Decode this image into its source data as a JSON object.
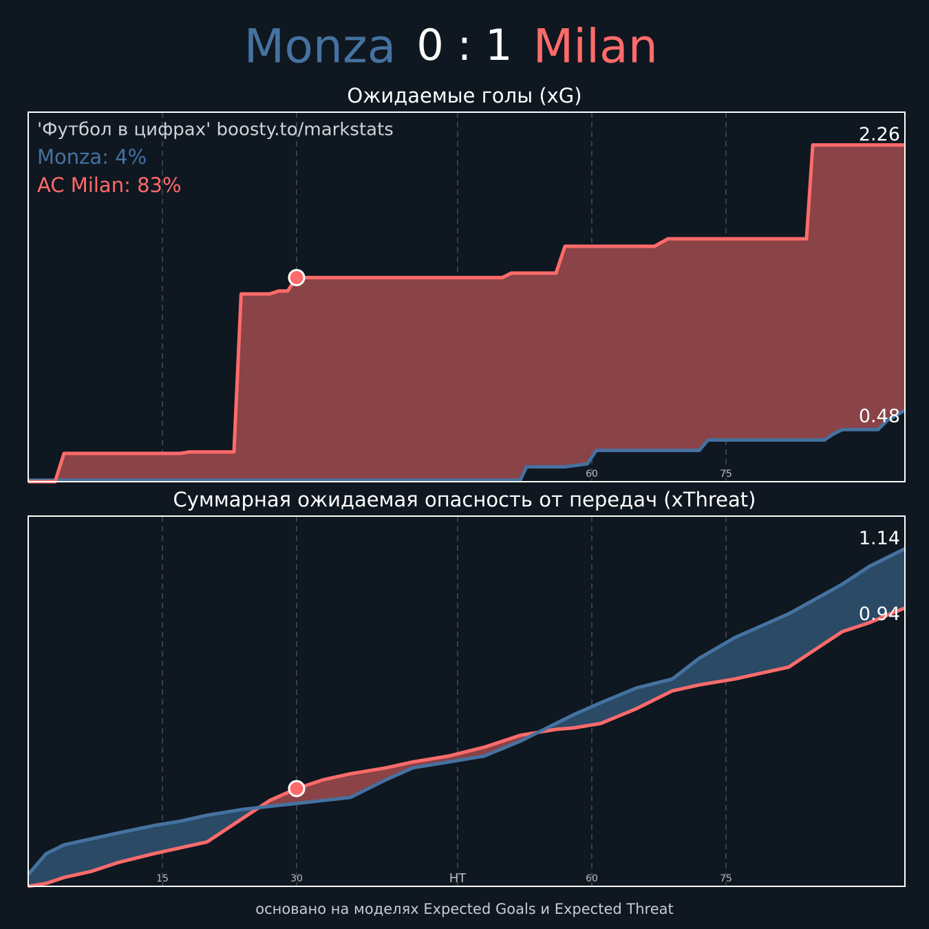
{
  "header": {
    "home": "Monza",
    "score": "0 : 1",
    "away": "Milan",
    "home_color": "#4572a0",
    "away_color": "#ff6b6b"
  },
  "footer": "основано на моделях Expected Goals и Expected Threat",
  "chart_data": [
    {
      "type": "line",
      "title": "Ожидаемые голы (xG)",
      "notes": [
        {
          "text": "'Футбол в цифрах' boosty.to/markstats",
          "color": "#cfd3d8"
        },
        {
          "text": "Monza: 4%",
          "color": "#4572a0"
        },
        {
          "text": "AC Milan: 83%",
          "color": "#ff6b6b"
        }
      ],
      "x": [
        0,
        3,
        4,
        17,
        18,
        23,
        23.8,
        27,
        28,
        29,
        30,
        53,
        54,
        55,
        55.7,
        59,
        60,
        62.5,
        63.5,
        70,
        71.5,
        75,
        76,
        87,
        87.7,
        89,
        90,
        91,
        95,
        96,
        98
      ],
      "series": [
        {
          "name": "Milan",
          "color": "#ff6b6b",
          "fill": "#8a4347",
          "values": [
            0,
            0,
            0.19,
            0.19,
            0.2,
            0.2,
            1.26,
            1.26,
            1.28,
            1.28,
            1.37,
            1.37,
            1.4,
            1.4,
            1.4,
            1.4,
            1.58,
            1.58,
            1.58,
            1.58,
            1.63,
            1.63,
            1.63,
            1.63,
            2.26,
            2.26,
            2.26,
            2.26,
            2.26,
            2.26,
            2.26
          ]
        },
        {
          "name": "Monza",
          "color": "#4572a0",
          "fill": "#2b4a66",
          "values": [
            0.01,
            0.01,
            0.01,
            0.01,
            0.01,
            0.01,
            0.01,
            0.01,
            0.01,
            0.01,
            0.01,
            0.01,
            0.01,
            0.01,
            0.1,
            0.1,
            0.1,
            0.12,
            0.21,
            0.21,
            0.21,
            0.21,
            0.28,
            0.28,
            0.28,
            0.28,
            0.32,
            0.35,
            0.35,
            0.41,
            0.48
          ]
        }
      ],
      "goals": [
        {
          "x": 30,
          "value": 1.37,
          "color": "#ff6b6b"
        }
      ],
      "xlim": [
        0,
        98
      ],
      "ylim": [
        0,
        2.48
      ],
      "xticks": [
        15,
        30,
        {
          "value": 48,
          "label": "HT"
        },
        {
          "value": 63,
          "label": "60"
        },
        {
          "value": 78,
          "label": "75"
        }
      ],
      "grid": true
    },
    {
      "type": "line",
      "title": "Суммарная ожидаемая опасность от передач (xThreat)",
      "notes": [],
      "x": [
        0,
        2,
        4,
        7,
        10,
        14,
        17,
        20,
        24,
        27,
        30,
        33,
        36,
        40,
        43,
        47,
        51,
        55,
        59,
        61,
        64,
        68,
        72,
        75,
        79,
        82,
        85,
        88,
        91,
        94,
        98
      ],
      "series": [
        {
          "name": "Monza",
          "color": "#4572a0",
          "fill": "#2b4a66",
          "values": [
            0.04,
            0.11,
            0.14,
            0.16,
            0.18,
            0.205,
            0.22,
            0.24,
            0.26,
            0.27,
            0.28,
            0.29,
            0.3,
            0.36,
            0.4,
            0.42,
            0.44,
            0.49,
            0.55,
            0.58,
            0.62,
            0.67,
            0.7,
            0.77,
            0.84,
            0.88,
            0.92,
            0.97,
            1.02,
            1.08,
            1.14
          ]
        },
        {
          "name": "Milan",
          "color": "#ff6b6b",
          "fill": "#8a4347",
          "values": [
            0,
            0.01,
            0.03,
            0.05,
            0.08,
            0.11,
            0.13,
            0.15,
            0.23,
            0.29,
            0.33,
            0.36,
            0.38,
            0.4,
            0.42,
            0.44,
            0.47,
            0.51,
            0.53,
            0.535,
            0.55,
            0.6,
            0.66,
            0.68,
            0.7,
            0.72,
            0.74,
            0.8,
            0.86,
            0.89,
            0.94
          ]
        }
      ],
      "goals": [
        {
          "x": 30,
          "value": 0.33,
          "color": "#ff6b6b"
        }
      ],
      "xlim": [
        0,
        98
      ],
      "ylim": [
        0,
        1.25
      ],
      "xticks": [
        15,
        30,
        {
          "value": 48,
          "label": "HT"
        },
        {
          "value": 63,
          "label": "60"
        },
        {
          "value": 78,
          "label": "75"
        }
      ],
      "grid": true
    }
  ]
}
